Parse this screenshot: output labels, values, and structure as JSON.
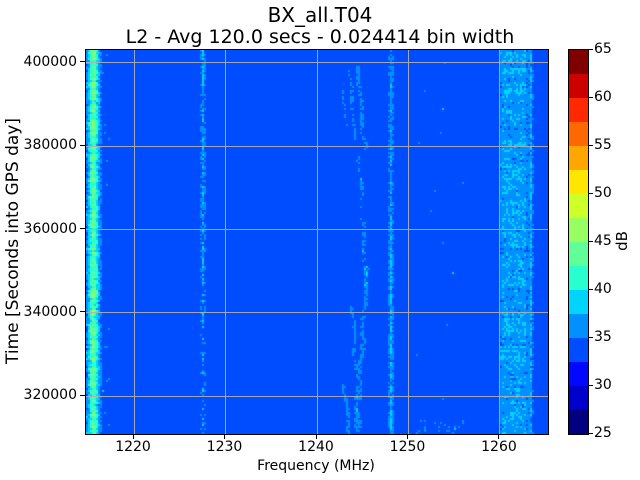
{
  "chart_data": {
    "type": "heatmap",
    "title": "BX_all.T04",
    "subtitle": "L2 - Avg 120.0 secs - 0.024414 bin width",
    "xlabel": "Frequency (MHz)",
    "ylabel": "Time [Seconds into GPS day]",
    "colorbar_label": "dB",
    "x_range_mhz": [
      1214.75,
      1265.25
    ],
    "y_range_s": [
      310900,
      403100
    ],
    "x_ticks_mhz": [
      1220,
      1230,
      1240,
      1250,
      1260
    ],
    "y_ticks_s": [
      320000,
      340000,
      360000,
      380000,
      400000
    ],
    "grid": {
      "show": true,
      "color": "#b0b0b0"
    },
    "color_scale": {
      "colormap": "jet",
      "min_db": 25,
      "max_db": 65,
      "n_bins": 16,
      "ticks_db": [
        25,
        30,
        35,
        40,
        45,
        50,
        55,
        60,
        65
      ],
      "colors": [
        "#000080",
        "#0000cd",
        "#0008ff",
        "#004dff",
        "#0091ff",
        "#00d4ff",
        "#29ffce",
        "#60ff97",
        "#97ff60",
        "#ceff29",
        "#ffe600",
        "#ffa700",
        "#ff6800",
        "#ff2900",
        "#cd0000",
        "#800000"
      ]
    },
    "background_level_db": 34,
    "features": [
      {
        "name": "strong-carrier-1215.5",
        "kind": "gaussian-stripe",
        "center_mhz": 1215.57,
        "sigma_mhz": 0.4,
        "amp_db": 9.5,
        "noise_db": 1.8,
        "row_noise_db": 2.2,
        "gap_base": 0,
        "gap_slope": 0
      },
      {
        "name": "residual-speckle-1217",
        "kind": "speckles",
        "freq_min": 1216.4,
        "freq_max": 1217.4,
        "density": 0.025,
        "amp_db": 1.8,
        "bottom_factor": 1
      },
      {
        "name": "gps-l2-1227.6",
        "kind": "gaussian-stripe",
        "center_mhz": 1227.55,
        "sigma_mhz": 0.16,
        "amp_db": 3.4,
        "noise_db": 1.4,
        "row_noise_db": 0.8,
        "gap_base": 0.25,
        "gap_slope": 0.45
      },
      {
        "name": "drifting-satellite-traces-1243-1246",
        "kind": "wandering-traces",
        "amp_db": 2.6,
        "noise_db": 1.0,
        "dropout": 0.35,
        "traces": [
          {
            "t": [
              0.04,
              0.26
            ],
            "f": [
              1244.5,
              1245.2
            ],
            "w": 0.45,
            "wobble": 0.12,
            "phase": 0.5
          },
          {
            "t": [
              0.05,
              0.23
            ],
            "f": [
              1243.6,
              1244.1
            ],
            "w": 0.32,
            "wobble": 0.1,
            "phase": 2.1
          },
          {
            "t": [
              0.1,
              0.2
            ],
            "f": [
              1242.9,
              1243.2
            ],
            "w": 0.25,
            "wobble": 0.06,
            "phase": 4.0
          },
          {
            "t": [
              0.27,
              0.63
            ],
            "f": [
              1244.6,
              1245.4
            ],
            "w": 0.38,
            "wobble": 0.1,
            "phase": 1.2
          },
          {
            "t": [
              0.56,
              0.99
            ],
            "f": [
              1245.5,
              1244.3
            ],
            "w": 0.5,
            "wobble": 0.12,
            "phase": 3.3
          },
          {
            "t": [
              0.66,
              0.99
            ],
            "f": [
              1243.9,
              1244.6
            ],
            "w": 0.35,
            "wobble": 0.1,
            "phase": 5.2
          },
          {
            "t": [
              0.86,
              1.0
            ],
            "f": [
              1242.9,
              1243.6
            ],
            "w": 0.4,
            "wobble": 0.08,
            "phase": 0.9
          }
        ]
      },
      {
        "name": "narrow-line-1248",
        "kind": "gaussian-stripe",
        "center_mhz": 1248.1,
        "sigma_mhz": 0.15,
        "amp_db": 2.4,
        "bottom_boost_db": 1.6,
        "noise_db": 1.1,
        "row_noise_db": 0.6,
        "gap_base": 0.15,
        "gap_slope": -0.1
      },
      {
        "name": "sparse-speckles-1251-1256",
        "kind": "speckles",
        "freq_min": 1250.5,
        "freq_max": 1256.5,
        "density": 0.003,
        "amp_db": 2.2,
        "bottom_factor": 35,
        "clusters": [
          {
            "t": [
              0.21,
              0.26
            ],
            "f": [
              1252.8,
              1253.6
            ],
            "density": 0.05
          }
        ]
      },
      {
        "name": "broad-band-1260-1263",
        "kind": "flat-band",
        "freq_min": 1260.15,
        "freq_max": 1262.85,
        "amp_db": 2.7,
        "noise_db": 1.5,
        "row_noise_db": 0.7,
        "edge_soft_mhz": 0.2
      },
      {
        "name": "narrow-line-1263.4",
        "kind": "gaussian-stripe",
        "center_mhz": 1263.35,
        "sigma_mhz": 0.14,
        "amp_db": 3.6,
        "noise_db": 0.8,
        "row_noise_db": 0.5,
        "gap_base": 0.05,
        "gap_slope": 0
      }
    ]
  }
}
